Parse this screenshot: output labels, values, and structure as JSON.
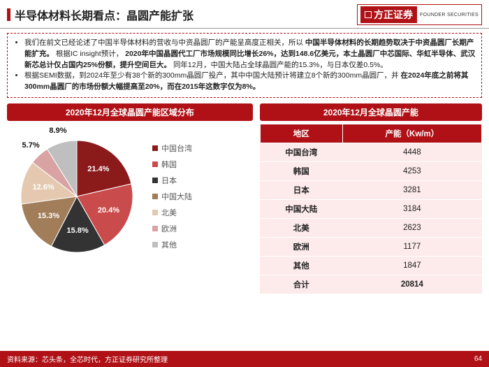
{
  "header": {
    "title": "半导体材料长期看点：晶圆产能扩张",
    "logo_main": "方正证券",
    "logo_sub": "FOUNDER SECURITIES"
  },
  "bullets": {
    "item1_a": "我们在前文已经论述了中国半导体材料的营收与中资晶圆厂的产能呈高度正相关，所以",
    "item1_b": "中国半导体材料的长期趋势取决于中资晶圆厂长期产能扩充。",
    "item1_c": "根据IC insight预计，",
    "item1_d": "2020年中国晶圆代工厂市场规模同比增长26%，达到148.6亿美元，本土晶圆厂中芯国际、华虹半导体、武汉新芯总计仅占国内25%份额，提升空间巨大。",
    "item1_e": "同年12月，中国大陆占全球晶圆产能的15.3%，与日本仅差0.5%。",
    "item2_a": "根据SEMI数据，到2024年至少有38个新的300mm晶圆厂投产，其中中国大陆预计将建立8个新的300mm晶圆厂，并",
    "item2_b": "在2024年底之前将其300mm晶圆厂的市场份额大幅提高至20%，而在2015年这数字仅为8%。"
  },
  "pie": {
    "banner": "2020年12月全球晶圆产能区域分布",
    "type": "pie",
    "background_color": "#ffffff",
    "label_fontsize": 11,
    "start_angle_deg": -90,
    "slices": [
      {
        "name": "中国台湾",
        "value": 21.4,
        "label": "21.4%",
        "color": "#8b1a1a"
      },
      {
        "name": "韩国",
        "value": 20.4,
        "label": "20.4%",
        "color": "#c94b4b"
      },
      {
        "name": "日本",
        "value": 15.8,
        "label": "15.8%",
        "color": "#333333"
      },
      {
        "name": "中国大陆",
        "value": 15.3,
        "label": "15.3%",
        "color": "#a27d5a"
      },
      {
        "name": "北美",
        "value": 12.6,
        "label": "12.6%",
        "color": "#e4c9b0"
      },
      {
        "name": "欧洲",
        "value": 5.7,
        "label": "5.7%",
        "color": "#d9a3a3"
      },
      {
        "name": "其他",
        "value": 8.9,
        "label": "8.9%",
        "color": "#bfbfbf"
      }
    ]
  },
  "table": {
    "banner": "2020年12月全球晶圆产能",
    "columns": [
      "地区",
      "产能（Kw/m）"
    ],
    "rows": [
      [
        "中国台湾",
        "4448"
      ],
      [
        "韩国",
        "4253"
      ],
      [
        "日本",
        "3281"
      ],
      [
        "中国大陆",
        "3184"
      ],
      [
        "北美",
        "2623"
      ],
      [
        "欧洲",
        "1177"
      ],
      [
        "其他",
        "1847"
      ],
      [
        "合计",
        "20814"
      ]
    ],
    "header_bg": "#b01116",
    "header_fg": "#ffffff",
    "cell_bg": "#fdeaea",
    "cell_fg": "#222222",
    "fontsize": 11.5
  },
  "footer": {
    "source": "资料来源：芯头条，全芯时代，方正证券研究所整理",
    "page": "64"
  },
  "colors": {
    "brand_red": "#b01116"
  }
}
